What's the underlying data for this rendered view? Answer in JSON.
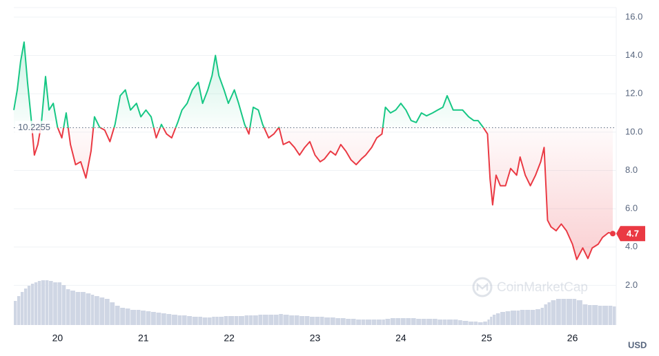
{
  "chart_data": {
    "type": "line",
    "x": [
      19.49,
      19.53,
      19.57,
      19.61,
      19.65,
      19.69,
      19.73,
      19.77,
      19.81,
      19.86,
      19.9,
      19.95,
      20.0,
      20.05,
      20.1,
      20.15,
      20.21,
      20.27,
      20.33,
      20.39,
      20.43,
      20.49,
      20.55,
      20.61,
      20.67,
      20.73,
      20.79,
      20.85,
      20.92,
      20.97,
      21.03,
      21.09,
      21.15,
      21.21,
      21.27,
      21.33,
      21.4,
      21.45,
      21.51,
      21.57,
      21.64,
      21.69,
      21.75,
      21.8,
      21.84,
      21.88,
      21.94,
      21.99,
      22.06,
      22.11,
      22.18,
      22.23,
      22.28,
      22.34,
      22.39,
      22.46,
      22.52,
      22.58,
      22.63,
      22.7,
      22.76,
      22.82,
      22.88,
      22.94,
      23.0,
      23.06,
      23.11,
      23.18,
      23.24,
      23.3,
      23.36,
      23.42,
      23.48,
      23.54,
      23.59,
      23.66,
      23.72,
      23.78,
      23.82,
      23.88,
      23.94,
      24.0,
      24.06,
      24.12,
      24.18,
      24.24,
      24.3,
      24.37,
      24.43,
      24.49,
      24.54,
      24.61,
      24.67,
      24.72,
      24.79,
      24.85,
      24.9,
      24.96,
      25.01,
      25.04,
      25.07,
      25.11,
      25.16,
      25.22,
      25.28,
      25.35,
      25.39,
      25.45,
      25.51,
      25.57,
      25.63,
      25.67,
      25.71,
      25.75,
      25.81,
      25.87,
      25.93,
      26.0,
      26.05,
      26.12,
      26.18,
      26.23,
      26.3,
      26.35,
      26.42,
      26.47
    ],
    "series": [
      {
        "color": "#16c784",
        "color_below": "#ea3943",
        "values": [
          11.15,
          12.2,
          13.7,
          14.7,
          12.6,
          10.8,
          8.8,
          9.35,
          10.4,
          12.9,
          11.15,
          11.5,
          10.25,
          9.7,
          11.0,
          9.35,
          8.3,
          8.45,
          7.6,
          9.0,
          10.8,
          10.25,
          10.1,
          9.5,
          10.4,
          11.9,
          12.2,
          11.15,
          11.5,
          10.8,
          11.15,
          10.8,
          9.7,
          10.4,
          9.9,
          9.7,
          10.5,
          11.15,
          11.5,
          12.2,
          12.6,
          11.5,
          12.2,
          12.95,
          14.0,
          12.95,
          12.2,
          11.5,
          12.2,
          11.5,
          10.4,
          9.9,
          11.3,
          11.15,
          10.4,
          9.7,
          9.9,
          10.25,
          9.35,
          9.5,
          9.2,
          8.8,
          9.2,
          9.5,
          8.8,
          8.45,
          8.6,
          9.0,
          8.8,
          9.35,
          9.0,
          8.55,
          8.3,
          8.6,
          8.8,
          9.2,
          9.7,
          9.9,
          11.3,
          11.0,
          11.15,
          11.5,
          11.15,
          10.6,
          10.5,
          11.0,
          10.85,
          11.0,
          11.15,
          11.3,
          11.9,
          11.15,
          11.15,
          11.15,
          10.8,
          10.6,
          10.6,
          10.25,
          9.9,
          7.55,
          6.2,
          7.75,
          7.2,
          7.2,
          8.1,
          7.75,
          8.7,
          7.75,
          7.2,
          7.75,
          8.45,
          9.2,
          5.4,
          5.05,
          4.85,
          5.2,
          4.85,
          4.15,
          3.35,
          3.95,
          3.4,
          3.95,
          4.15,
          4.5,
          4.75,
          4.7
        ]
      }
    ],
    "volume": {
      "color": "#cfd6e4",
      "values": [
        35,
        42,
        48,
        53,
        57,
        60,
        62,
        64,
        65,
        65,
        64,
        62,
        62,
        58,
        52,
        50,
        48,
        48,
        46,
        44,
        42,
        40,
        38,
        33,
        28,
        25,
        24,
        22,
        22,
        21,
        20,
        19,
        18,
        17,
        16,
        15,
        14,
        14,
        13,
        12,
        12,
        11,
        11,
        12,
        12,
        12,
        13,
        13,
        13,
        13,
        14,
        14,
        14,
        15,
        15,
        15,
        15,
        16,
        15,
        14,
        14,
        13,
        13,
        12,
        12,
        12,
        11,
        11,
        10,
        10,
        9,
        9,
        8,
        8,
        8,
        8,
        8,
        8,
        9,
        10,
        10,
        10,
        10,
        10,
        9,
        9,
        9,
        9,
        8,
        8,
        8,
        8,
        7,
        6,
        5,
        5,
        4,
        5,
        8,
        12,
        15,
        17,
        19,
        20,
        21,
        21,
        22,
        22,
        22,
        23,
        25,
        30,
        33,
        36,
        38,
        38,
        38,
        38,
        36,
        30,
        29,
        29,
        28,
        28,
        28,
        27
      ]
    },
    "baseline": 10.2255,
    "last_price": 4.7,
    "xlim": [
      19.49,
      26.51
    ],
    "xticks": [
      20,
      21,
      22,
      23,
      24,
      25,
      26
    ],
    "ylim": [
      0,
      16.5
    ],
    "yticks": [
      {
        "value": 2,
        "label": "2.0"
      },
      {
        "value": 4,
        "label": "4.0"
      },
      {
        "value": 6,
        "label": "6.0"
      },
      {
        "value": 8,
        "label": "8.0"
      },
      {
        "value": 10,
        "label": "10.0"
      },
      {
        "value": 12,
        "label": "12.0"
      },
      {
        "value": 14,
        "label": "14.0"
      },
      {
        "value": 16,
        "label": "16.0"
      }
    ],
    "grid": true,
    "unit": "USD",
    "watermark": "CoinMarketCap"
  }
}
